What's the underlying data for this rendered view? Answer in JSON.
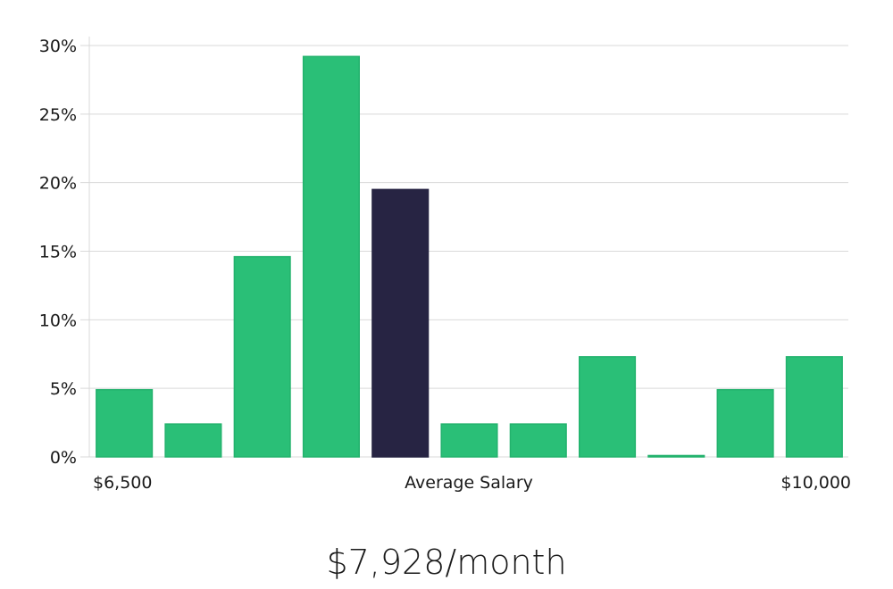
{
  "chart_data": {
    "type": "bar",
    "x_labels": {
      "left": "$6,500",
      "center": "Average Salary",
      "right": "$10,000"
    },
    "values": [
      4.9,
      2.4,
      14.6,
      29.2,
      19.5,
      2.4,
      2.4,
      7.3,
      0.1,
      4.9,
      7.3
    ],
    "highlight_index": 4,
    "y_ticks": [
      "0%",
      "5%",
      "10%",
      "15%",
      "20%",
      "25%",
      "30%"
    ],
    "ylim": [
      0,
      30
    ],
    "grid": true,
    "colors": {
      "bar": "#2abf77",
      "bar_stroke": "#23b26d",
      "highlight": "#272443"
    }
  },
  "summary": {
    "text": "$7,928/month"
  }
}
